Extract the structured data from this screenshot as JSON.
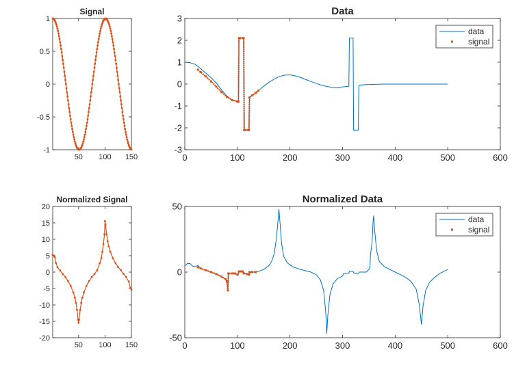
{
  "chart_data": [
    {
      "id": "signal",
      "type": "line",
      "title": "Signal",
      "xlim": [
        1,
        150
      ],
      "ylim": [
        -1,
        1
      ],
      "xticks": [
        50,
        100,
        150
      ],
      "yticks": [
        -1,
        -0.5,
        0,
        0.5,
        1
      ],
      "grid": false,
      "legend": null,
      "series": [
        {
          "name": "",
          "color": "#D95319",
          "marker": "dot",
          "x_range": [
            1,
            150
          ],
          "function": "cos(2*pi*(x-1)/100)"
        }
      ]
    },
    {
      "id": "data",
      "type": "line",
      "title": "Data",
      "xlim": [
        0,
        600
      ],
      "ylim": [
        -3,
        3
      ],
      "xticks": [
        0,
        100,
        200,
        300,
        400,
        500,
        600
      ],
      "yticks": [
        -3,
        -2,
        -1,
        0,
        1,
        2,
        3
      ],
      "grid": false,
      "legend": "top-right",
      "series": [
        {
          "name": "data",
          "color": "#0072BD",
          "points": [
            [
              1,
              1.0
            ],
            [
              10,
              0.98
            ],
            [
              20,
              0.9
            ],
            [
              30,
              0.71
            ],
            [
              40,
              0.5
            ],
            [
              50,
              0.29
            ],
            [
              60,
              0.05
            ],
            [
              70,
              -0.27
            ],
            [
              80,
              -0.55
            ],
            [
              90,
              -0.72
            ],
            [
              100,
              -0.8
            ],
            [
              102,
              -0.81
            ],
            [
              103,
              2.1
            ],
            [
              112,
              2.1
            ],
            [
              113,
              -2.1
            ],
            [
              122,
              -2.1
            ],
            [
              123,
              -0.61
            ],
            [
              130,
              -0.48
            ],
            [
              140,
              -0.3
            ],
            [
              150,
              -0.1
            ],
            [
              160,
              0.08
            ],
            [
              170,
              0.23
            ],
            [
              180,
              0.35
            ],
            [
              190,
              0.41
            ],
            [
              200,
              0.42
            ],
            [
              210,
              0.38
            ],
            [
              220,
              0.3
            ],
            [
              230,
              0.21
            ],
            [
              240,
              0.12
            ],
            [
              250,
              0.03
            ],
            [
              260,
              -0.05
            ],
            [
              270,
              -0.11
            ],
            [
              280,
              -0.15
            ],
            [
              290,
              -0.16
            ],
            [
              300,
              -0.13
            ],
            [
              312,
              -0.1
            ],
            [
              313,
              2.1
            ],
            [
              320,
              2.1
            ],
            [
              321,
              -2.1
            ],
            [
              330,
              -2.1
            ],
            [
              331,
              -0.05
            ],
            [
              340,
              -0.03
            ],
            [
              360,
              -0.01
            ],
            [
              380,
              0.0
            ],
            [
              400,
              0.0
            ],
            [
              450,
              0.0
            ],
            [
              500,
              0.0
            ]
          ]
        },
        {
          "name": "signal",
          "color": "#D95319",
          "marker": "dot",
          "points": [
            [
              25,
              0.66
            ],
            [
              30,
              0.55
            ],
            [
              40,
              0.35
            ],
            [
              50,
              0.12
            ],
            [
              60,
              -0.12
            ],
            [
              70,
              -0.37
            ],
            [
              80,
              -0.58
            ],
            [
              90,
              -0.73
            ],
            [
              100,
              -0.8
            ],
            [
              102,
              -0.81
            ],
            [
              103,
              2.1
            ],
            [
              105,
              2.1
            ],
            [
              110,
              2.1
            ],
            [
              112,
              2.1
            ],
            [
              113,
              -2.1
            ],
            [
              115,
              -2.1
            ],
            [
              120,
              -2.1
            ],
            [
              122,
              -2.1
            ],
            [
              123,
              -0.61
            ],
            [
              128,
              -0.52
            ],
            [
              135,
              -0.4
            ],
            [
              140,
              -0.3
            ]
          ]
        }
      ]
    },
    {
      "id": "normalized-signal",
      "type": "line",
      "title": "Normalized Signal",
      "xlim": [
        1,
        150
      ],
      "ylim": [
        -20,
        20
      ],
      "xticks": [
        50,
        100,
        150
      ],
      "yticks": [
        -20,
        -15,
        -10,
        -5,
        0,
        5,
        10,
        15,
        20
      ],
      "grid": false,
      "legend": null,
      "series": [
        {
          "name": "",
          "color": "#D95319",
          "marker": "dot",
          "points": [
            [
              1,
              5.2
            ],
            [
              3,
              5.0
            ],
            [
              5,
              4.6
            ],
            [
              7,
              2.8
            ],
            [
              10,
              1.5
            ],
            [
              15,
              0.5
            ],
            [
              20,
              -0.6
            ],
            [
              25,
              -1.5
            ],
            [
              30,
              -2.7
            ],
            [
              35,
              -4.2
            ],
            [
              40,
              -6.2
            ],
            [
              43,
              -7.8
            ],
            [
              45,
              -9.4
            ],
            [
              47,
              -11.5
            ],
            [
              49,
              -14.5
            ],
            [
              50,
              -15.5
            ],
            [
              51,
              -14.5
            ],
            [
              53,
              -11.5
            ],
            [
              55,
              -9.4
            ],
            [
              57,
              -7.8
            ],
            [
              60,
              -6.2
            ],
            [
              65,
              -4.2
            ],
            [
              70,
              -2.7
            ],
            [
              75,
              -1.5
            ],
            [
              80,
              -0.6
            ],
            [
              85,
              0.5
            ],
            [
              90,
              2.7
            ],
            [
              93,
              4.2
            ],
            [
              95,
              6.2
            ],
            [
              97,
              8.5
            ],
            [
              99,
              11.5
            ],
            [
              100,
              15.5
            ],
            [
              101,
              14.5
            ],
            [
              103,
              11.5
            ],
            [
              105,
              9.4
            ],
            [
              107,
              7.8
            ],
            [
              110,
              6.2
            ],
            [
              115,
              4.2
            ],
            [
              120,
              2.7
            ],
            [
              125,
              1.5
            ],
            [
              130,
              0.6
            ],
            [
              135,
              -0.5
            ],
            [
              140,
              -1.5
            ],
            [
              145,
              -2.9
            ],
            [
              148,
              -4.8
            ],
            [
              150,
              -5.4
            ]
          ]
        }
      ]
    },
    {
      "id": "normalized-data",
      "type": "line",
      "title": "Normalized Data",
      "xlim": [
        0,
        600
      ],
      "ylim": [
        -50,
        50
      ],
      "xticks": [
        0,
        100,
        200,
        300,
        400,
        500,
        600
      ],
      "yticks": [
        -50,
        0,
        50
      ],
      "grid": false,
      "legend": "top-right",
      "series": [
        {
          "name": "data",
          "color": "#0072BD",
          "points": [
            [
              1,
              5
            ],
            [
              5,
              6.5
            ],
            [
              10,
              6.5
            ],
            [
              15,
              4.5
            ],
            [
              20,
              4.3
            ],
            [
              25,
              5
            ],
            [
              30,
              3
            ],
            [
              40,
              1.5
            ],
            [
              50,
              0
            ],
            [
              60,
              -1.5
            ],
            [
              70,
              -3.5
            ],
            [
              78,
              -5.5
            ],
            [
              80,
              -7
            ],
            [
              82,
              -14
            ],
            [
              83,
              -1
            ],
            [
              95,
              -1
            ],
            [
              102,
              -2
            ],
            [
              103,
              0.5
            ],
            [
              110,
              0.5
            ],
            [
              112,
              -1
            ],
            [
              118,
              -1.5
            ],
            [
              122,
              -2
            ],
            [
              123,
              0
            ],
            [
              135,
              0
            ],
            [
              140,
              0.5
            ],
            [
              150,
              2
            ],
            [
              160,
              5
            ],
            [
              165,
              8
            ],
            [
              170,
              14
            ],
            [
              174,
              25
            ],
            [
              177,
              38
            ],
            [
              179,
              48
            ],
            [
              181,
              38
            ],
            [
              184,
              22
            ],
            [
              188,
              12
            ],
            [
              195,
              7
            ],
            [
              205,
              4
            ],
            [
              220,
              2
            ],
            [
              240,
              0
            ],
            [
              250,
              -2
            ],
            [
              258,
              -6
            ],
            [
              264,
              -14
            ],
            [
              268,
              -30
            ],
            [
              270,
              -47
            ],
            [
              272,
              -33
            ],
            [
              276,
              -17
            ],
            [
              282,
              -9
            ],
            [
              290,
              -5
            ],
            [
              298,
              -3.5
            ],
            [
              300,
              -3
            ],
            [
              302,
              -1
            ],
            [
              312,
              -1
            ],
            [
              313,
              0.5
            ],
            [
              320,
              0.5
            ],
            [
              322,
              -1
            ],
            [
              330,
              -1
            ],
            [
              332,
              0
            ],
            [
              345,
              0
            ],
            [
              350,
              2
            ],
            [
              352,
              3
            ],
            [
              353,
              13
            ],
            [
              356,
              22
            ],
            [
              358,
              38
            ],
            [
              359,
              43
            ],
            [
              361,
              32
            ],
            [
              365,
              16
            ],
            [
              370,
              8
            ],
            [
              380,
              4
            ],
            [
              390,
              2
            ],
            [
              400,
              0
            ],
            [
              410,
              -2
            ],
            [
              420,
              -4
            ],
            [
              430,
              -7
            ],
            [
              440,
              -13
            ],
            [
              446,
              -25
            ],
            [
              450,
              -40
            ],
            [
              453,
              -26
            ],
            [
              458,
              -14
            ],
            [
              465,
              -8
            ],
            [
              475,
              -4
            ],
            [
              485,
              -1
            ],
            [
              495,
              1
            ],
            [
              500,
              2
            ]
          ]
        },
        {
          "name": "signal",
          "color": "#D95319",
          "marker": "dot",
          "points": [
            [
              25,
              3.6
            ],
            [
              30,
              2.8
            ],
            [
              40,
              1.4
            ],
            [
              50,
              0
            ],
            [
              60,
              -1.5
            ],
            [
              70,
              -3.5
            ],
            [
              78,
              -5.5
            ],
            [
              80,
              -7
            ],
            [
              82,
              -14
            ],
            [
              83,
              -1
            ],
            [
              90,
              -1
            ],
            [
              95,
              -1
            ],
            [
              100,
              -2
            ],
            [
              103,
              0.5
            ],
            [
              107,
              0.5
            ],
            [
              110,
              0.5
            ],
            [
              112,
              -1
            ],
            [
              118,
              -1.5
            ],
            [
              122,
              -2
            ],
            [
              123,
              0
            ],
            [
              128,
              0
            ],
            [
              135,
              0
            ]
          ]
        }
      ]
    }
  ]
}
